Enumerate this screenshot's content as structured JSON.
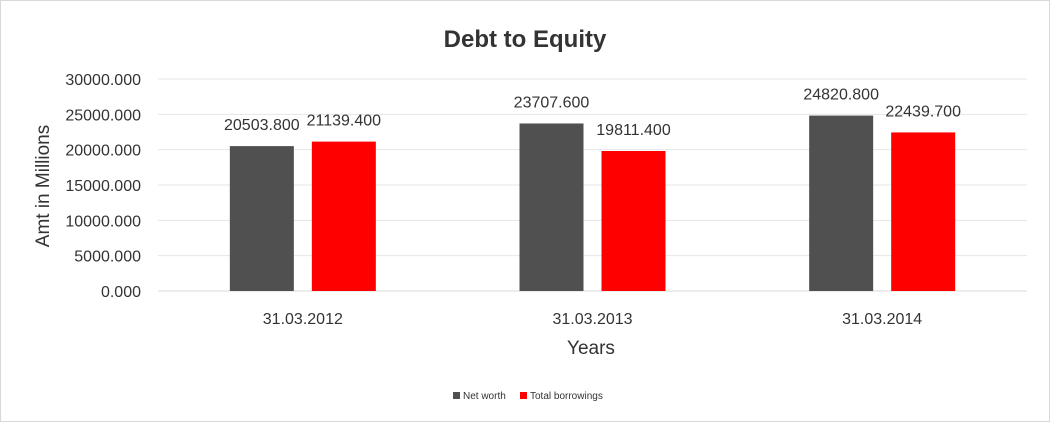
{
  "chart_data": {
    "type": "bar",
    "title": "Debt to Equity",
    "xlabel": "Years",
    "ylabel": "Amt in Millions",
    "categories": [
      "31.03.2012",
      "31.03.2013",
      "31.03.2014"
    ],
    "series": [
      {
        "name": "Net worth",
        "color": "#505050",
        "values": [
          20503.8,
          23707.6,
          24820.8
        ],
        "labels": [
          "20503.800",
          "23707.600",
          "24820.800"
        ]
      },
      {
        "name": "Total borrowings",
        "color": "#ff0000",
        "values": [
          21139.4,
          19811.4,
          22439.7
        ],
        "labels": [
          "21139.400",
          "19811.400",
          "22439.700"
        ]
      }
    ],
    "ylim": [
      0,
      30000
    ],
    "yticks": [
      0,
      5000,
      10000,
      15000,
      20000,
      25000,
      30000
    ],
    "ytick_labels": [
      "0.000",
      "5000.000",
      "10000.000",
      "15000.000",
      "20000.000",
      "25000.000",
      "30000.000"
    ],
    "grid": true,
    "legend_position": "bottom"
  }
}
